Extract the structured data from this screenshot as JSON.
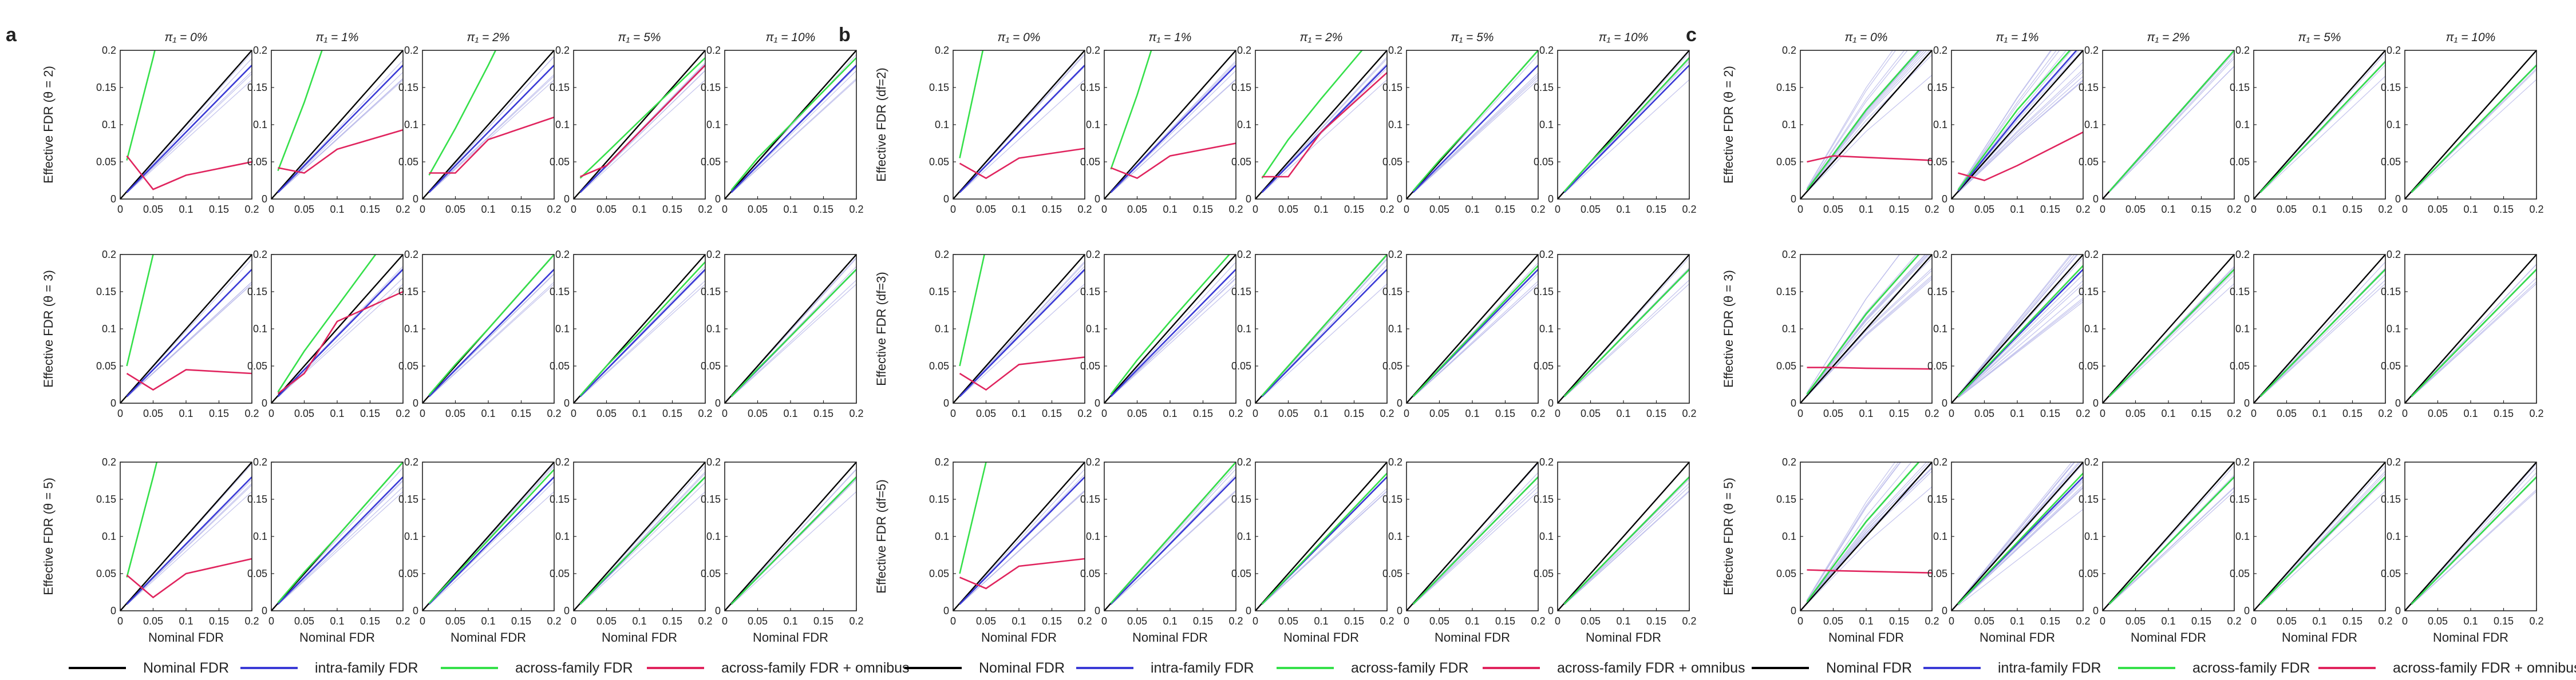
{
  "figure": {
    "panel_letters": [
      "a",
      "b",
      "c"
    ],
    "column_titles": [
      "π₁ = 0%",
      "π₁ = 1%",
      "π₁ = 2%",
      "π₁ = 5%",
      "π₁ = 10%"
    ],
    "row_labels": [
      [
        "Effective FDR (θ = 2)",
        "Effective FDR (θ = 3)",
        "Effective FDR (θ = 5)"
      ],
      [
        "Effective FDR (df=2)",
        "Effective FDR (df=3)",
        "Effective FDR (df=5)"
      ],
      [
        "Effective FDR (θ = 2)",
        "Effective FDR (θ = 3)",
        "Effective FDR (θ = 5)"
      ]
    ],
    "xlabel": "Nominal FDR",
    "x_tick_labels": [
      "0",
      "0.05",
      "0.1",
      "0.15",
      "0.2"
    ],
    "y_tick_labels": [
      "0",
      "0.05",
      "0.1",
      "0.15",
      "0.2"
    ]
  },
  "legend": [
    {
      "label": "Nominal FDR",
      "color": "#000000"
    },
    {
      "label": "intra-family FDR",
      "color": "#3a3ad6"
    },
    {
      "label": "across-family FDR",
      "color": "#35e04a"
    },
    {
      "label": "across-family FDR + omnibus",
      "color": "#e0245e"
    }
  ],
  "chart_data": {
    "type": "line",
    "xlim": [
      0,
      0.2
    ],
    "ylim": [
      0,
      0.2
    ],
    "grid": false,
    "legend_position": "bottom",
    "x": [
      0.01,
      0.05,
      0.1,
      0.2
    ],
    "panels": [
      {
        "panel": "a",
        "rows": [
          {
            "row": 0,
            "cols": [
              {
                "intra": [
                  0.009,
                  0.045,
                  0.09,
                  0.18
                ],
                "across": [
                  0.052,
                  0.19,
                  0.38,
                  0.76
                ],
                "omnibus": [
                  0.058,
                  0.013,
                  0.032,
                  0.05
                ]
              },
              {
                "intra": [
                  0.009,
                  0.045,
                  0.09,
                  0.18
                ],
                "across": [
                  0.038,
                  0.13,
                  0.26,
                  0.52
                ],
                "omnibus": [
                  0.042,
                  0.035,
                  0.067,
                  0.093
                ]
              },
              {
                "intra": [
                  0.009,
                  0.045,
                  0.09,
                  0.18
                ],
                "across": [
                  0.032,
                  0.095,
                  0.18,
                  0.36
                ],
                "omnibus": [
                  0.035,
                  0.035,
                  0.08,
                  0.11
                ]
              },
              {
                "intra": [
                  0.009,
                  0.045,
                  0.09,
                  0.18
                ],
                "across": [
                  0.028,
                  0.062,
                  0.105,
                  0.19
                ],
                "omnibus": [
                  0.03,
                  0.045,
                  0.09,
                  0.18
                ]
              },
              {
                "intra": [
                  0.009,
                  0.045,
                  0.09,
                  0.18
                ],
                "across": [
                  0.012,
                  0.055,
                  0.1,
                  0.19
                ],
                "omnibus": null
              }
            ]
          },
          {
            "row": 1,
            "cols": [
              {
                "intra": [
                  0.009,
                  0.045,
                  0.09,
                  0.18
                ],
                "across": [
                  0.05,
                  0.2,
                  0.4,
                  0.8
                ],
                "omnibus": [
                  0.04,
                  0.018,
                  0.045,
                  0.04
                ]
              },
              {
                "intra": [
                  0.009,
                  0.045,
                  0.09,
                  0.18
                ],
                "across": [
                  0.015,
                  0.07,
                  0.13,
                  0.25
                ],
                "omnibus": [
                  0.013,
                  0.04,
                  0.11,
                  0.15
                ]
              },
              {
                "intra": [
                  0.009,
                  0.045,
                  0.09,
                  0.18
                ],
                "across": [
                  0.011,
                  0.052,
                  0.1,
                  0.2
                ],
                "omnibus": null
              },
              {
                "intra": [
                  0.009,
                  0.045,
                  0.09,
                  0.18
                ],
                "across": [
                  0.01,
                  0.05,
                  0.095,
                  0.19
                ],
                "omnibus": null
              },
              {
                "intra": [
                  0.009,
                  0.045,
                  0.09,
                  0.18
                ],
                "across": [
                  0.009,
                  0.046,
                  0.09,
                  0.18
                ],
                "omnibus": null
              }
            ]
          },
          {
            "row": 2,
            "cols": [
              {
                "intra": [
                  0.009,
                  0.045,
                  0.09,
                  0.18
                ],
                "across": [
                  0.045,
                  0.18,
                  0.36,
                  0.72
                ],
                "omnibus": [
                  0.048,
                  0.018,
                  0.05,
                  0.07
                ]
              },
              {
                "intra": [
                  0.009,
                  0.045,
                  0.09,
                  0.18
                ],
                "across": [
                  0.011,
                  0.052,
                  0.1,
                  0.2
                ],
                "omnibus": null
              },
              {
                "intra": [
                  0.009,
                  0.045,
                  0.09,
                  0.18
                ],
                "across": [
                  0.01,
                  0.048,
                  0.095,
                  0.19
                ],
                "omnibus": null
              },
              {
                "intra": [
                  0.009,
                  0.045,
                  0.09,
                  0.18
                ],
                "across": [
                  0.009,
                  0.046,
                  0.09,
                  0.18
                ],
                "omnibus": null
              },
              {
                "intra": [
                  0.009,
                  0.045,
                  0.09,
                  0.18
                ],
                "across": [
                  0.009,
                  0.045,
                  0.09,
                  0.18
                ],
                "omnibus": null
              }
            ]
          }
        ]
      },
      {
        "panel": "b",
        "rows": [
          {
            "row": 0,
            "cols": [
              {
                "intra": [
                  0.009,
                  0.045,
                  0.09,
                  0.18
                ],
                "across": [
                  0.055,
                  0.22,
                  0.44,
                  0.88
                ],
                "omnibus": [
                  0.048,
                  0.028,
                  0.055,
                  0.068
                ]
              },
              {
                "intra": [
                  0.009,
                  0.045,
                  0.09,
                  0.18
                ],
                "across": [
                  0.04,
                  0.14,
                  0.28,
                  0.56
                ],
                "omnibus": [
                  0.042,
                  0.028,
                  0.058,
                  0.075
                ]
              },
              {
                "intra": [
                  0.009,
                  0.045,
                  0.09,
                  0.18
                ],
                "across": [
                  0.028,
                  0.08,
                  0.135,
                  0.24
                ],
                "omnibus": [
                  0.03,
                  0.03,
                  0.09,
                  0.17
                ]
              },
              {
                "intra": [
                  0.009,
                  0.045,
                  0.09,
                  0.18
                ],
                "across": [
                  0.011,
                  0.052,
                  0.1,
                  0.2
                ],
                "omnibus": null
              },
              {
                "intra": [
                  0.009,
                  0.045,
                  0.09,
                  0.18
                ],
                "across": [
                  0.01,
                  0.05,
                  0.095,
                  0.19
                ],
                "omnibus": null
              }
            ]
          },
          {
            "row": 1,
            "cols": [
              {
                "intra": [
                  0.009,
                  0.045,
                  0.09,
                  0.18
                ],
                "across": [
                  0.05,
                  0.21,
                  0.42,
                  0.84
                ],
                "omnibus": [
                  0.04,
                  0.018,
                  0.052,
                  0.062
                ]
              },
              {
                "intra": [
                  0.009,
                  0.045,
                  0.09,
                  0.18
                ],
                "across": [
                  0.012,
                  0.058,
                  0.11,
                  0.21
                ],
                "omnibus": null
              },
              {
                "intra": [
                  0.009,
                  0.045,
                  0.09,
                  0.18
                ],
                "across": [
                  0.01,
                  0.05,
                  0.1,
                  0.2
                ],
                "omnibus": null
              },
              {
                "intra": [
                  0.009,
                  0.045,
                  0.09,
                  0.18
                ],
                "across": [
                  0.009,
                  0.046,
                  0.092,
                  0.185
                ],
                "omnibus": null
              },
              {
                "intra": [
                  0.009,
                  0.045,
                  0.09,
                  0.18
                ],
                "across": [
                  0.009,
                  0.045,
                  0.09,
                  0.18
                ],
                "omnibus": null
              }
            ]
          },
          {
            "row": 2,
            "cols": [
              {
                "intra": [
                  0.009,
                  0.045,
                  0.09,
                  0.18
                ],
                "across": [
                  0.05,
                  0.2,
                  0.4,
                  0.8
                ],
                "omnibus": [
                  0.045,
                  0.03,
                  0.06,
                  0.07
                ]
              },
              {
                "intra": [
                  0.009,
                  0.045,
                  0.09,
                  0.18
                ],
                "across": [
                  0.01,
                  0.05,
                  0.1,
                  0.2
                ],
                "omnibus": null
              },
              {
                "intra": [
                  0.009,
                  0.045,
                  0.09,
                  0.18
                ],
                "across": [
                  0.009,
                  0.046,
                  0.092,
                  0.185
                ],
                "omnibus": null
              },
              {
                "intra": [
                  0.009,
                  0.045,
                  0.09,
                  0.18
                ],
                "across": [
                  0.009,
                  0.045,
                  0.09,
                  0.18
                ],
                "omnibus": null
              },
              {
                "intra": [
                  0.009,
                  0.045,
                  0.09,
                  0.18
                ],
                "across": [
                  0.009,
                  0.045,
                  0.09,
                  0.18
                ],
                "omnibus": null
              }
            ]
          }
        ]
      },
      {
        "panel": "c",
        "rows": [
          {
            "row": 0,
            "cols": [
              {
                "intra": [
                  0.012,
                  0.06,
                  0.12,
                  0.22
                ],
                "across": [
                  0.012,
                  0.06,
                  0.12,
                  0.22
                ],
                "omnibus": [
                  0.05,
                  0.058,
                  0.056,
                  0.052
                ]
              },
              {
                "intra": [
                  0.011,
                  0.055,
                  0.11,
                  0.21
                ],
                "across": [
                  0.012,
                  0.06,
                  0.12,
                  0.22
                ],
                "omnibus": [
                  0.035,
                  0.025,
                  0.045,
                  0.09
                ]
              },
              {
                "intra": [
                  0.01,
                  0.05,
                  0.1,
                  0.2
                ],
                "across": [
                  0.01,
                  0.05,
                  0.1,
                  0.2
                ],
                "omnibus": null
              },
              {
                "intra": [
                  0.009,
                  0.046,
                  0.092,
                  0.185
                ],
                "across": [
                  0.009,
                  0.046,
                  0.092,
                  0.185
                ],
                "omnibus": null
              },
              {
                "intra": [
                  0.009,
                  0.045,
                  0.09,
                  0.18
                ],
                "across": [
                  0.009,
                  0.045,
                  0.09,
                  0.18
                ],
                "omnibus": null
              }
            ]
          },
          {
            "row": 1,
            "cols": [
              {
                "intra": [
                  0.012,
                  0.06,
                  0.12,
                  0.22
                ],
                "across": [
                  0.012,
                  0.06,
                  0.12,
                  0.22
                ],
                "omnibus": [
                  0.048,
                  0.048,
                  0.047,
                  0.046
                ]
              },
              {
                "intra": [
                  0.009,
                  0.045,
                  0.09,
                  0.18
                ],
                "across": [
                  0.009,
                  0.046,
                  0.092,
                  0.185
                ],
                "omnibus": null
              },
              {
                "intra": [
                  0.009,
                  0.045,
                  0.09,
                  0.18
                ],
                "across": [
                  0.009,
                  0.045,
                  0.09,
                  0.18
                ],
                "omnibus": null
              },
              {
                "intra": [
                  0.009,
                  0.045,
                  0.09,
                  0.18
                ],
                "across": [
                  0.009,
                  0.045,
                  0.09,
                  0.18
                ],
                "omnibus": null
              },
              {
                "intra": [
                  0.009,
                  0.045,
                  0.09,
                  0.18
                ],
                "across": [
                  0.009,
                  0.045,
                  0.09,
                  0.18
                ],
                "omnibus": null
              }
            ]
          },
          {
            "row": 2,
            "cols": [
              {
                "intra": [
                  0.012,
                  0.06,
                  0.12,
                  0.22
                ],
                "across": [
                  0.012,
                  0.06,
                  0.12,
                  0.22
                ],
                "omnibus": [
                  0.055,
                  0.054,
                  0.053,
                  0.051
                ]
              },
              {
                "intra": [
                  0.009,
                  0.045,
                  0.09,
                  0.18
                ],
                "across": [
                  0.009,
                  0.046,
                  0.092,
                  0.185
                ],
                "omnibus": null
              },
              {
                "intra": [
                  0.009,
                  0.045,
                  0.09,
                  0.18
                ],
                "across": [
                  0.009,
                  0.045,
                  0.09,
                  0.18
                ],
                "omnibus": null
              },
              {
                "intra": [
                  0.009,
                  0.045,
                  0.09,
                  0.18
                ],
                "across": [
                  0.009,
                  0.045,
                  0.09,
                  0.18
                ],
                "omnibus": null
              },
              {
                "intra": [
                  0.009,
                  0.045,
                  0.09,
                  0.18
                ],
                "across": [
                  0.009,
                  0.045,
                  0.09,
                  0.18
                ],
                "omnibus": null
              }
            ]
          }
        ]
      }
    ]
  }
}
